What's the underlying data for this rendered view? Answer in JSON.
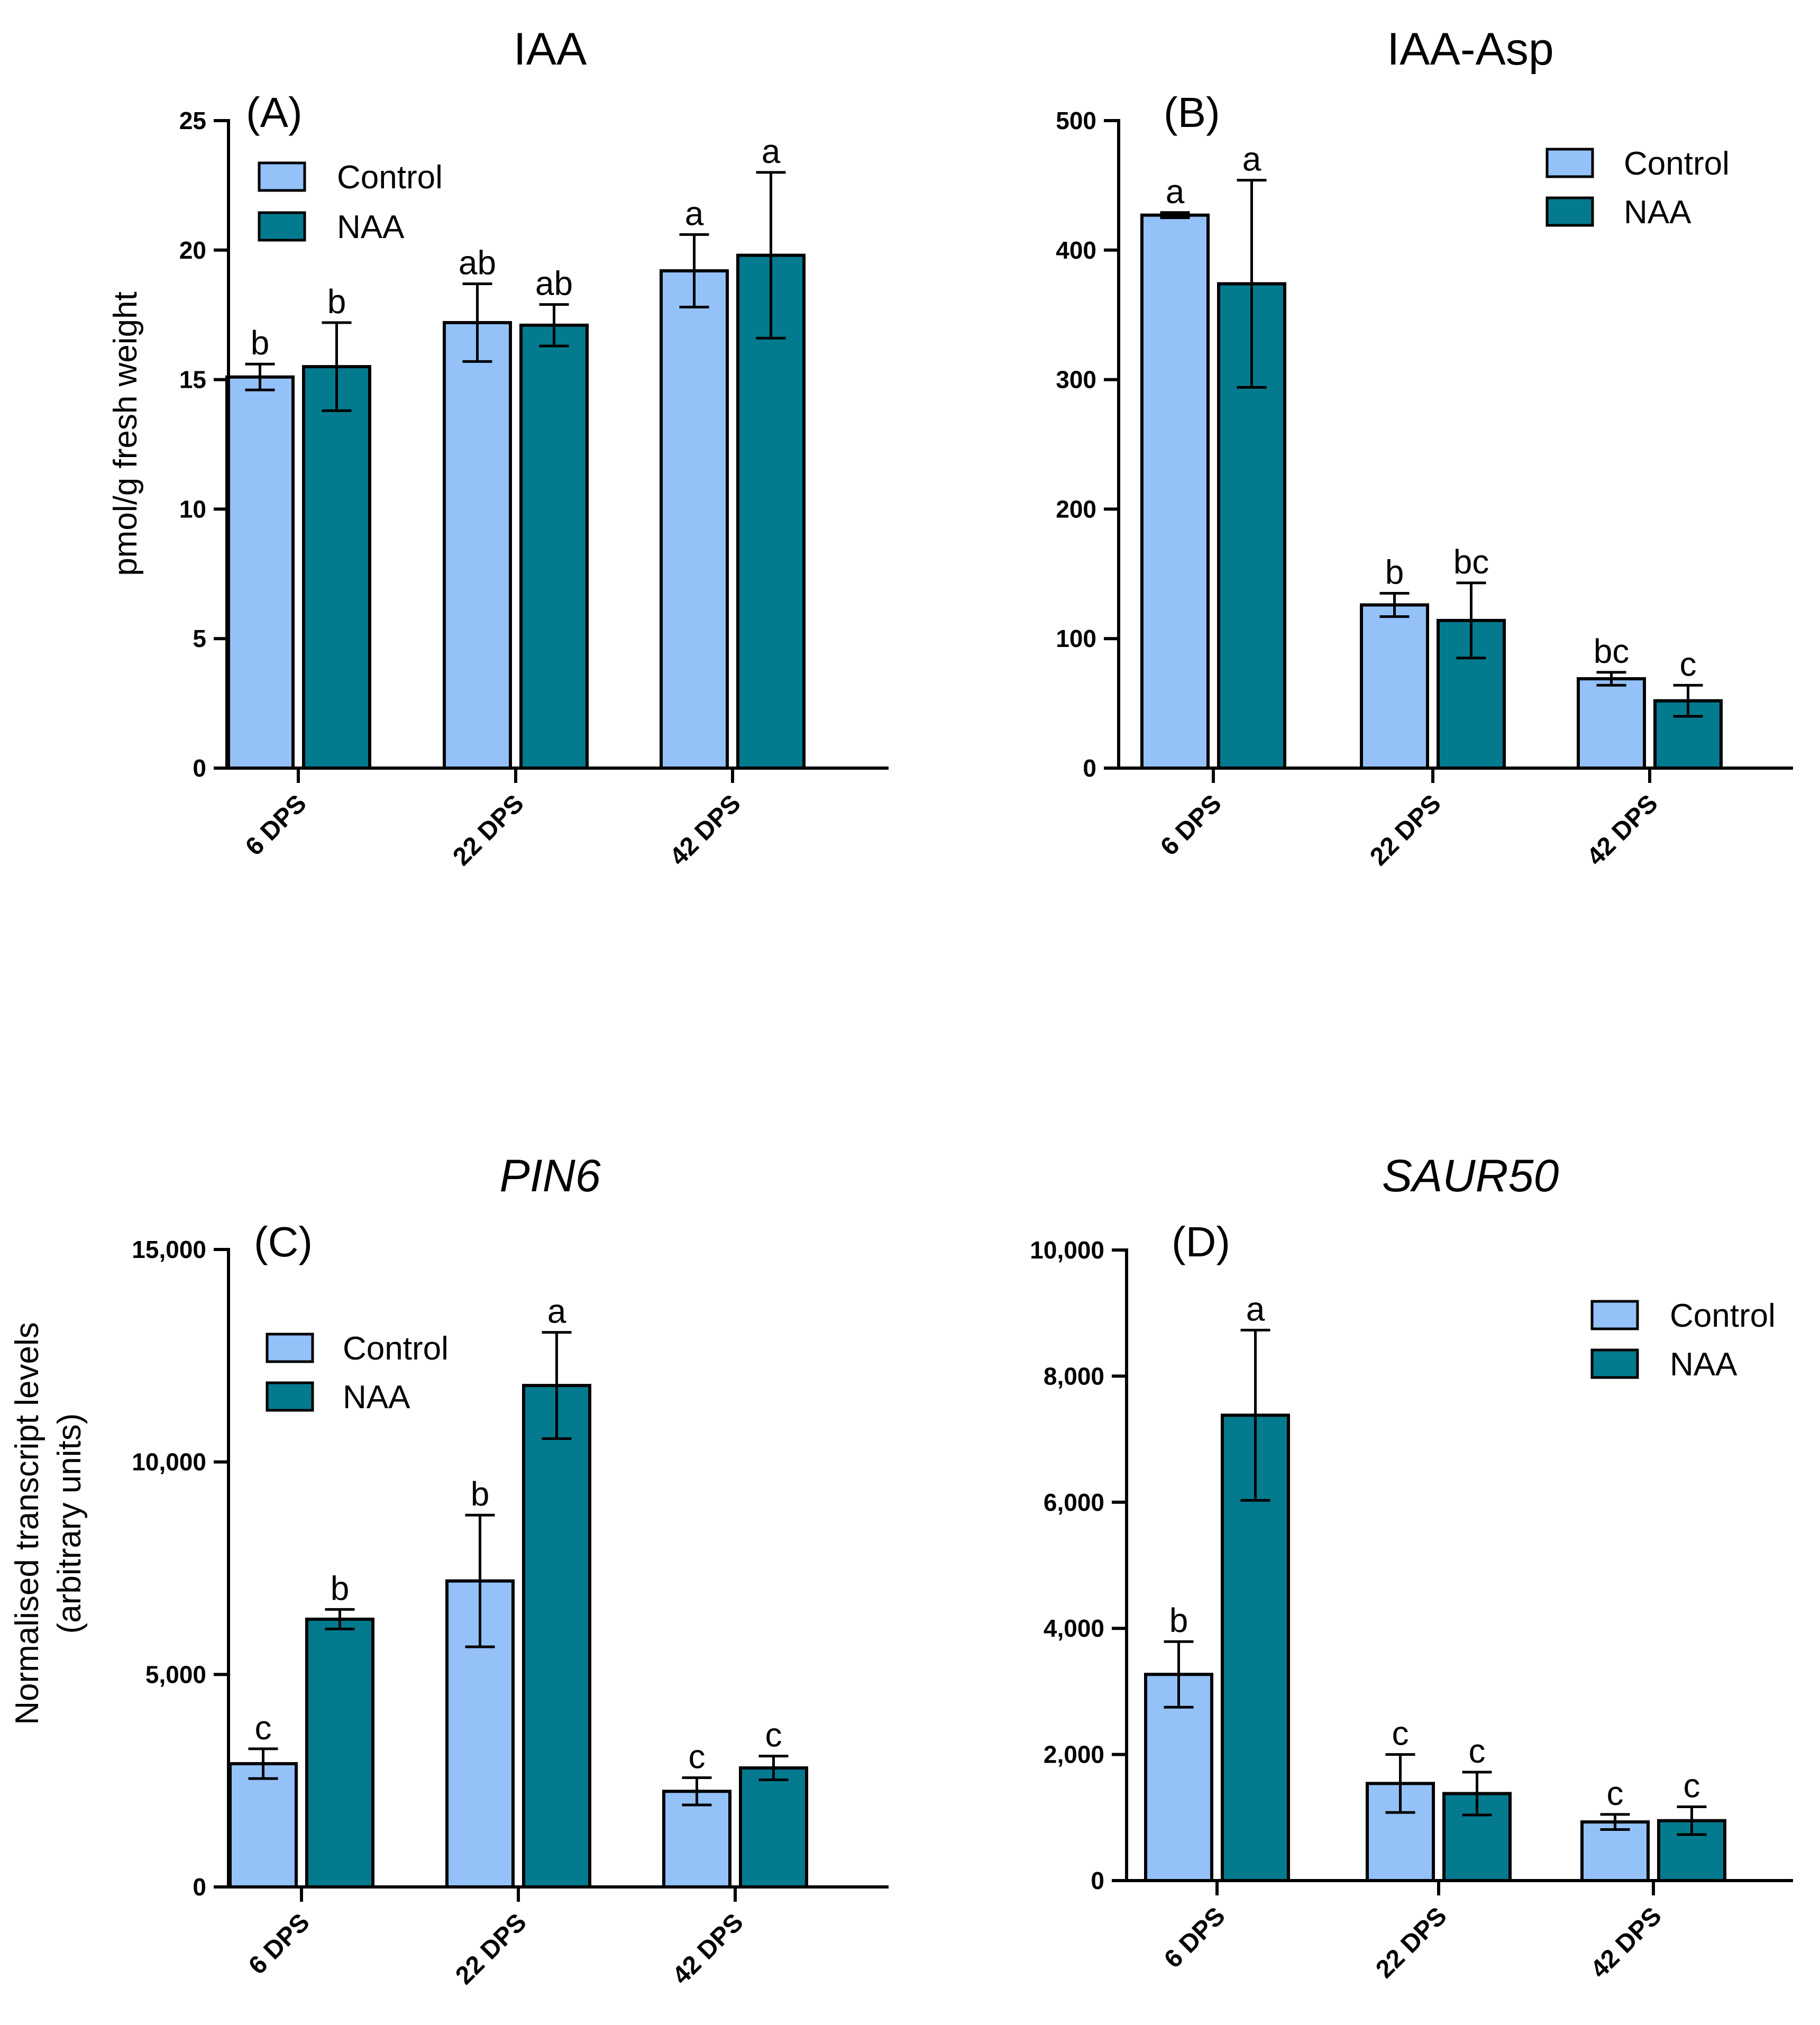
{
  "colors": {
    "control": "#93c1f8",
    "naa": "#037a8e",
    "stroke": "#000000"
  },
  "legend_labels": [
    "Control",
    "NAA"
  ],
  "chart_data": [
    {
      "type": "bar",
      "panel": "(A)",
      "title": "IAA",
      "title_italic": false,
      "ylabel": [
        "pmol/g fresh weight"
      ],
      "ylim": [
        0,
        25
      ],
      "yticks": [
        0,
        5,
        10,
        15,
        20,
        25
      ],
      "ytick_labels": [
        "0",
        "5",
        "10",
        "15",
        "20",
        "25"
      ],
      "categories": [
        "6 DPS",
        "22 DPS",
        "42 DPS"
      ],
      "legend": "top-left",
      "series": [
        {
          "name": "Control",
          "values": [
            15.1,
            17.2,
            19.2
          ],
          "errors": [
            0.5,
            1.5,
            1.4
          ],
          "letters": [
            "b",
            "ab",
            "a"
          ]
        },
        {
          "name": "NAA",
          "values": [
            15.5,
            17.1,
            19.8
          ],
          "errors": [
            1.7,
            0.8,
            3.2
          ],
          "letters": [
            "b",
            "ab",
            "a"
          ]
        }
      ]
    },
    {
      "type": "bar",
      "panel": "(B)",
      "title": "IAA-Asp",
      "title_italic": false,
      "ylabel": [],
      "ylim": [
        0,
        500
      ],
      "yticks": [
        0,
        100,
        200,
        300,
        400,
        500
      ],
      "ytick_labels": [
        "0",
        "100",
        "200",
        "300",
        "400",
        "500"
      ],
      "categories": [
        "6 DPS",
        "22 DPS",
        "42 DPS"
      ],
      "legend": "top-right",
      "series": [
        {
          "name": "Control",
          "values": [
            427,
            126,
            69
          ],
          "errors": [
            2,
            9,
            5
          ],
          "letters": [
            "a",
            "b",
            "bc"
          ]
        },
        {
          "name": "NAA",
          "values": [
            374,
            114,
            52
          ],
          "errors": [
            80,
            29,
            12
          ],
          "letters": [
            "a",
            "bc",
            "c"
          ]
        }
      ]
    },
    {
      "type": "bar",
      "panel": "(C)",
      "title": "PIN6",
      "title_italic": true,
      "ylabel": [
        "Normalised transcript levels",
        "(arbitrary units)"
      ],
      "ylim": [
        0,
        15000
      ],
      "yticks": [
        0,
        5000,
        10000,
        15000
      ],
      "ytick_labels": [
        "0",
        "5,000",
        "10,000",
        "15,000"
      ],
      "categories": [
        "6 DPS",
        "22 DPS",
        "42 DPS"
      ],
      "legend": "top-left",
      "series": [
        {
          "name": "Control",
          "values": [
            2900,
            7200,
            2250
          ],
          "errors": [
            350,
            1550,
            320
          ],
          "letters": [
            "c",
            "b",
            "c"
          ]
        },
        {
          "name": "NAA",
          "values": [
            6300,
            11800,
            2800
          ],
          "errors": [
            230,
            1250,
            280
          ],
          "letters": [
            "b",
            "a",
            "c"
          ]
        }
      ]
    },
    {
      "type": "bar",
      "panel": "(D)",
      "title": "SAUR50",
      "title_italic": true,
      "ylabel": [],
      "ylim": [
        0,
        10000
      ],
      "yticks": [
        0,
        2000,
        4000,
        6000,
        8000,
        10000
      ],
      "ytick_labels": [
        "0",
        "2,000",
        "4,000",
        "6,000",
        "8,000",
        "10,000"
      ],
      "categories": [
        "6 DPS",
        "22 DPS",
        "42 DPS"
      ],
      "legend": "top-right",
      "series": [
        {
          "name": "Control",
          "values": [
            3270,
            1540,
            930
          ],
          "errors": [
            520,
            460,
            120
          ],
          "letters": [
            "b",
            "c",
            "c"
          ]
        },
        {
          "name": "NAA",
          "values": [
            7380,
            1380,
            950
          ],
          "errors": [
            1350,
            340,
            220
          ],
          "letters": [
            "a",
            "c",
            "c"
          ]
        }
      ]
    }
  ]
}
